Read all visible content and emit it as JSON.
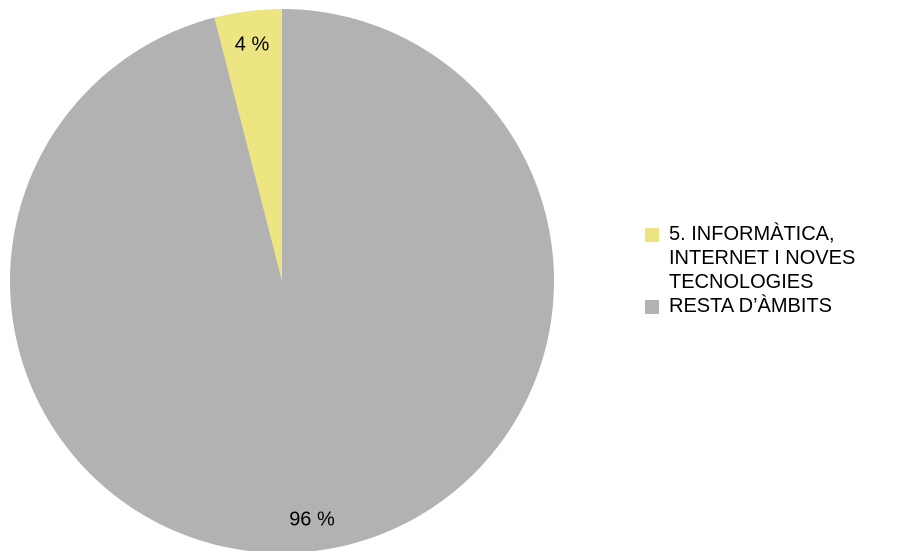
{
  "chart_data": {
    "type": "pie",
    "title": "",
    "slices": [
      {
        "label": "5. INFORMÀTICA, INTERNET I NOVES TECNOLOGIES",
        "value": 4,
        "display": "4 %",
        "color": "#ece581"
      },
      {
        "label": "RESTA D'ÀMBITS",
        "value": 96,
        "display": "96 %",
        "color": "#b2b2b2"
      }
    ],
    "start_angle_deg": 0,
    "direction": "counterclockwise",
    "legend_position": "right"
  },
  "legend": {
    "items": [
      {
        "label": "5. INFORMÀTICA, INTERNET I NOVES TECNOLOGIES",
        "color": "#ece581"
      },
      {
        "label": "RESTA D’ÀMBITS",
        "color": "#b2b2b2"
      }
    ]
  }
}
